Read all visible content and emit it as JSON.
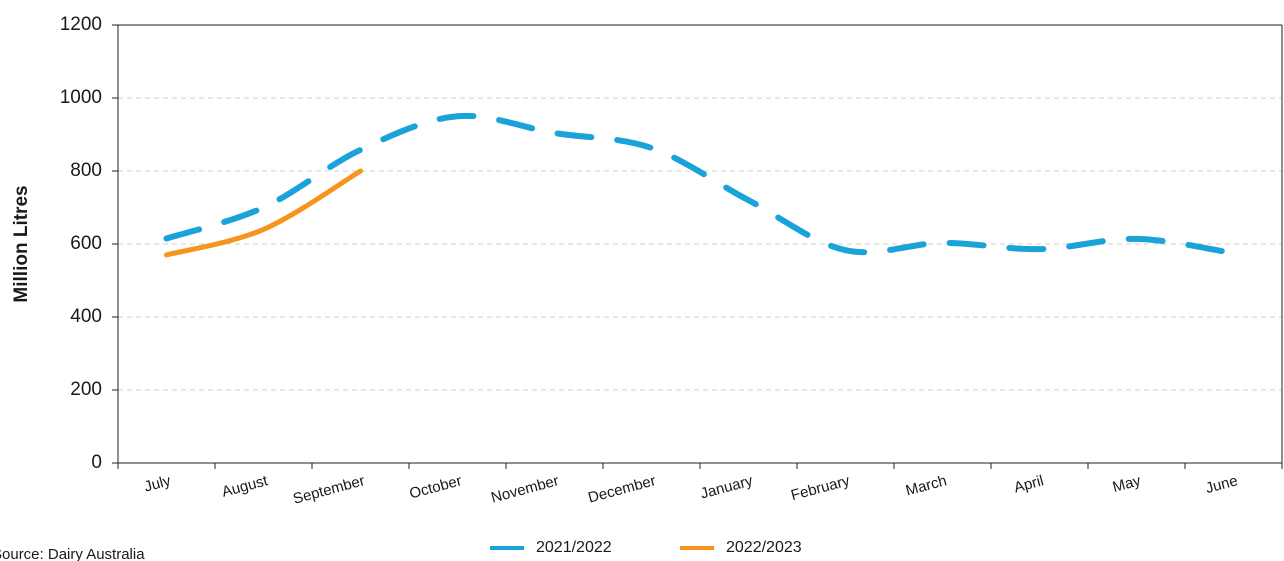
{
  "chart_data": {
    "type": "line",
    "y_label": "Million Litres",
    "source": "Source: Dairy Australia",
    "categories": [
      "July",
      "August",
      "September",
      "October",
      "November",
      "December",
      "January",
      "February",
      "March",
      "April",
      "May",
      "June"
    ],
    "series": [
      {
        "name": "2021/2022",
        "color": "#1aa3d9",
        "dashed": true,
        "values": [
          615,
          700,
          858,
          950,
          904,
          863,
          720,
          583,
          603,
          586,
          614,
          575
        ]
      },
      {
        "name": "2022/2023",
        "color": "#f7941d",
        "dashed": false,
        "values": [
          570,
          640,
          800,
          null,
          null,
          null,
          null,
          null,
          null,
          null,
          null,
          null
        ]
      }
    ],
    "ylim": [
      0,
      1200
    ],
    "yticks": [
      0,
      200,
      400,
      600,
      800,
      1000,
      1200
    ],
    "grid": true,
    "legend": "bottom"
  }
}
